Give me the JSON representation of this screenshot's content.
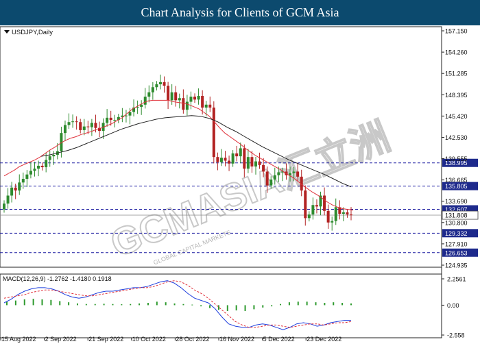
{
  "header": {
    "title": "Chart Analysis for Clients of GCM Asia"
  },
  "watermark": {
    "main": "GCMASIA汇立洲",
    "sub": "GLOBAL CAPITAL MARKETS"
  },
  "chart_data": [
    {
      "type": "candlestick",
      "symbol_label": "USDJPY,Daily",
      "x_tick_labels": [
        "15 Aug 2022",
        "2 Sep 2022",
        "21 Sep 2022",
        "10 Oct 2022",
        "28 Oct 2022",
        "16 Nov 2022",
        "5 Dec 2022",
        "23 Dec 2022"
      ],
      "y_tick_labels": [
        "157.150",
        "154.260",
        "151.285",
        "148.395",
        "145.420",
        "142.530",
        "139.555",
        "136.665",
        "133.690",
        "130.800",
        "127.910",
        "124.935"
      ],
      "ylim": [
        124.935,
        157.15
      ],
      "grid": false,
      "level_lines": [
        {
          "value": 138.995,
          "label": "138.995"
        },
        {
          "value": 135.805,
          "label": "135.805"
        },
        {
          "value": 132.607,
          "label": "132.607"
        },
        {
          "value": 129.332,
          "label": "129.332"
        },
        {
          "value": 126.653,
          "label": "126.653"
        }
      ],
      "current_price": {
        "value": 131.808,
        "label": "131.808"
      },
      "colors": {
        "up": "#2e8b2e",
        "down": "#b22222",
        "ma_fast": "#e0303a",
        "ma_slow": "#222222",
        "level": "#1a1aa0"
      },
      "closes": [
        133.4,
        134.5,
        135.6,
        135.2,
        136.3,
        136.8,
        137.4,
        137.9,
        138.2,
        138.6,
        138.4,
        139.4,
        139.9,
        140.1,
        140.6,
        143.1,
        144.2,
        144.6,
        144.7,
        144.6,
        143.5,
        144.0,
        143.9,
        144.5,
        143.8,
        143.4,
        144.5,
        145.2,
        144.9,
        144.9,
        145.3,
        145.5,
        145.5,
        146.0,
        146.6,
        146.7,
        147.0,
        148.1,
        148.7,
        149.4,
        149.8,
        150.1,
        149.6,
        147.6,
        148.7,
        147.6,
        147.9,
        146.3,
        147.4,
        148.1,
        147.7,
        148.2,
        146.6,
        147.0,
        146.6,
        139.8,
        139.1,
        139.7,
        139.3,
        138.9,
        140.3,
        139.9,
        141.0,
        138.2,
        139.8,
        138.5,
        139.2,
        138.7,
        137.8,
        135.9,
        136.7,
        137.3,
        137.7,
        137.8,
        137.3,
        137.6,
        137.8,
        137.1,
        135.2,
        131.4,
        131.9,
        133.2,
        133.0,
        134.5,
        132.4,
        130.8,
        131.0,
        132.9,
        132.0,
        132.2,
        131.9,
        131.8
      ],
      "ma_fast": [
        137.2,
        137.6,
        138.0,
        138.5,
        138.8,
        139.1,
        139.4,
        139.8,
        140.3,
        140.8,
        141.2,
        141.7,
        142.1,
        142.4,
        142.6,
        142.9,
        143.1,
        143.3,
        143.6,
        143.8,
        144.1,
        144.4,
        144.8,
        145.2,
        145.8,
        146.4,
        146.8,
        147.2,
        147.5,
        147.6,
        147.6,
        147.6,
        147.6,
        147.4,
        147.3,
        147.2,
        147.0,
        146.7,
        146.4,
        145.9,
        145.4,
        144.6,
        143.8,
        143.1,
        142.6,
        142.1,
        141.6,
        141.0,
        140.5,
        140.0,
        139.6,
        139.2,
        138.8,
        138.4,
        138.0,
        137.5,
        137.1,
        136.6,
        136.0,
        135.5,
        135.0,
        134.6,
        134.1,
        133.6,
        133.2,
        132.9,
        132.7,
        132.6,
        132.5
      ],
      "ma_slow": [
        139.9,
        140.1,
        140.4,
        140.7,
        141.1,
        141.6,
        142.1,
        142.6,
        143.1,
        143.6,
        144.0,
        144.4,
        144.7,
        145.0,
        145.2,
        145.3,
        145.4,
        145.5,
        145.4,
        145.1,
        144.6,
        143.9,
        143.3,
        142.6,
        141.9,
        141.2,
        140.6,
        140.0,
        139.4,
        138.9,
        138.4,
        137.9,
        137.4,
        136.8,
        136.2,
        135.7
      ]
    },
    {
      "type": "macd",
      "label": "MACD(12,26,9) -1.2762 -1.4180 0.1918",
      "y_tick_labels": [
        "2.2561",
        "0.00",
        "-2.558"
      ],
      "ylim": [
        -2.558,
        2.2561
      ],
      "zero_line": 0,
      "colors": {
        "macd_line": "#1f3fdd",
        "signal_line": "#e0303a",
        "histogram": "#2e9a2e"
      },
      "macd": [
        0.2,
        0.5,
        0.9,
        1.2,
        1.4,
        1.5,
        1.5,
        1.4,
        1.2,
        0.9,
        0.7,
        0.6,
        0.7,
        0.9,
        1.1,
        1.2,
        1.2,
        1.3,
        1.4,
        1.5,
        1.5,
        1.6,
        1.8,
        2.0,
        2.1,
        1.9,
        1.5,
        1.0,
        0.6,
        0.4,
        0.2,
        -0.3,
        -1.0,
        -1.6,
        -1.8,
        -1.9,
        -1.9,
        -1.7,
        -1.6,
        -1.7,
        -1.9,
        -2.1,
        -1.9,
        -1.6,
        -1.5,
        -1.6,
        -1.8,
        -1.7,
        -1.5,
        -1.4,
        -1.3,
        -1.3
      ],
      "signal": [
        0.6,
        0.7,
        0.8,
        0.9,
        1.1,
        1.2,
        1.3,
        1.3,
        1.2,
        1.1,
        1.0,
        0.9,
        0.8,
        0.8,
        0.9,
        1.0,
        1.1,
        1.2,
        1.3,
        1.4,
        1.5,
        1.5,
        1.6,
        1.8,
        2.0,
        2.1,
        2.0,
        1.7,
        1.3,
        1.0,
        0.6,
        0.1,
        -0.4,
        -0.9,
        -1.4,
        -1.7,
        -1.9,
        -1.9,
        -1.8,
        -1.7,
        -1.7,
        -1.8,
        -1.9,
        -1.8,
        -1.7,
        -1.6,
        -1.6,
        -1.7,
        -1.6,
        -1.5,
        -1.5,
        -1.4
      ],
      "histogram": [
        0.3,
        0.4,
        0.5,
        0.55,
        0.5,
        0.45,
        0.35,
        0.25,
        0.15,
        0.1,
        0.1,
        0.12,
        0.1,
        0.08,
        0.1,
        0.15,
        0.2,
        0.3,
        0.25,
        0.15,
        0.1,
        0.05,
        -0.1,
        -0.25,
        -0.4,
        -0.5,
        -0.45,
        -0.5,
        -0.35,
        -0.2,
        -0.1,
        0.1,
        0.25,
        0.3,
        0.3,
        0.25,
        0.2,
        0.25,
        0.2,
        0.15
      ]
    }
  ]
}
